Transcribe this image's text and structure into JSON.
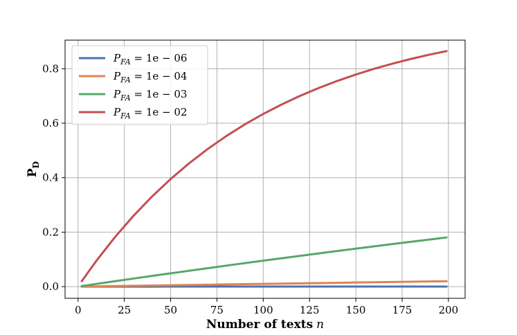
{
  "chart_data": {
    "type": "line",
    "xlabel": "Number of texts",
    "xlabel_var": "n",
    "ylabel": "P",
    "ylabel_sub": "D",
    "xlim": [
      -7,
      209
    ],
    "ylim": [
      -0.043,
      0.905
    ],
    "xticks": [
      0,
      25,
      50,
      75,
      100,
      125,
      150,
      175,
      200
    ],
    "yticks": [
      0.0,
      0.2,
      0.4,
      0.6,
      0.8
    ],
    "grid": true,
    "legend_position": "top-left",
    "x": [
      2,
      10,
      20,
      30,
      40,
      50,
      60,
      70,
      80,
      90,
      100,
      110,
      120,
      130,
      140,
      150,
      160,
      170,
      180,
      190,
      199
    ],
    "series": [
      {
        "name": "P_FA = 1e − 06",
        "legend_main": "P",
        "legend_sub": "FA",
        "legend_rest": " = 1e − 06",
        "color": "#4c72b0",
        "values": [
          0.0,
          0.0,
          0.0,
          0.0,
          0.0,
          0.0001,
          0.0001,
          0.0001,
          0.0001,
          0.0001,
          0.0001,
          0.0001,
          0.0001,
          0.0001,
          0.0001,
          0.0002,
          0.0002,
          0.0002,
          0.0002,
          0.0002,
          0.0002
        ]
      },
      {
        "name": "P_FA = 1e − 04",
        "legend_main": "P",
        "legend_sub": "FA",
        "legend_rest": " = 1e − 04",
        "color": "#dd8452",
        "values": [
          0.0002,
          0.001,
          0.002,
          0.003,
          0.004,
          0.005,
          0.006,
          0.007,
          0.008,
          0.009,
          0.01,
          0.011,
          0.012,
          0.013,
          0.014,
          0.015,
          0.016,
          0.017,
          0.018,
          0.019,
          0.0197
        ]
      },
      {
        "name": "P_FA = 1e − 03",
        "legend_main": "P",
        "legend_sub": "FA",
        "legend_rest": " = 1e − 03",
        "color": "#55a868",
        "values": [
          0.002,
          0.01,
          0.0198,
          0.0296,
          0.0392,
          0.0488,
          0.0582,
          0.0676,
          0.0769,
          0.0861,
          0.0952,
          0.1042,
          0.1131,
          0.1219,
          0.1307,
          0.1393,
          0.1479,
          0.1564,
          0.1648,
          0.1731,
          0.1805
        ]
      },
      {
        "name": "P_FA = 1e − 02",
        "legend_main": "P",
        "legend_sub": "FA",
        "legend_rest": " = 1e − 02",
        "color": "#c44e52",
        "values": [
          0.0199,
          0.0956,
          0.1821,
          0.2603,
          0.331,
          0.395,
          0.4528,
          0.5052,
          0.5525,
          0.5953,
          0.634,
          0.669,
          0.7007,
          0.7294,
          0.7553,
          0.7787,
          0.7999,
          0.8191,
          0.8364,
          0.8521,
          0.8647
        ]
      }
    ]
  }
}
